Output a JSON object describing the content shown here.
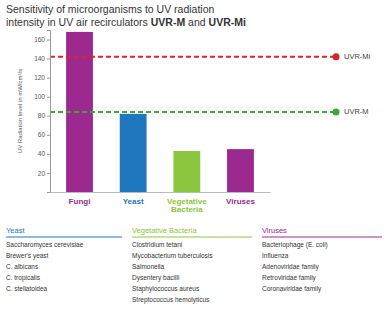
{
  "chart_data": {
    "type": "bar",
    "title": [
      "Sensitivity of microorganisms to UV radiation",
      "intensity in UV air recirculators UVR-M and UVR-Mi"
    ],
    "y_label": "UV Radiation level in mW/cm²/s",
    "categories": [
      "Fungi",
      "Yeast",
      "Vegetative Bacteria",
      "Viruses"
    ],
    "values": [
      168,
      82,
      43,
      45
    ],
    "colors": [
      "#9c2a8e",
      "#1f78bd",
      "#8cc63e",
      "#9c2a8e"
    ],
    "ylim": [
      0,
      170
    ],
    "yticks": [
      20,
      40,
      60,
      80,
      100,
      120,
      140,
      160
    ],
    "grid": false,
    "reference_lines": [
      {
        "name": "UVR-Mi",
        "value": 142,
        "color": "#d7262b"
      },
      {
        "name": "UVR-M",
        "value": 84,
        "color": "#3aa935"
      }
    ]
  },
  "lists": [
    {
      "title": "Yeast",
      "color": "#1f78bd",
      "items": [
        "Saccharomyces cerevisiae",
        "Brewer's yeast",
        "C. albicans",
        "C. tropicalis",
        "C. stellatoidea"
      ]
    },
    {
      "title": "Vegetative Bacteria",
      "color": "#8cc63e",
      "items": [
        "Clostridium tetani",
        "Mycobacterium tuberculosis",
        "Salmonella",
        "Dysentery bacilli",
        "Staphylococcus aureus",
        "Streptococcus hemolyticus"
      ]
    },
    {
      "title": "Viruses",
      "color": "#9c2a8e",
      "items": [
        "Bacteriophage (E. coli)",
        "Influenza",
        "Adenoviridae family",
        "Retroviridae family",
        "Coronaviridae family"
      ]
    }
  ]
}
